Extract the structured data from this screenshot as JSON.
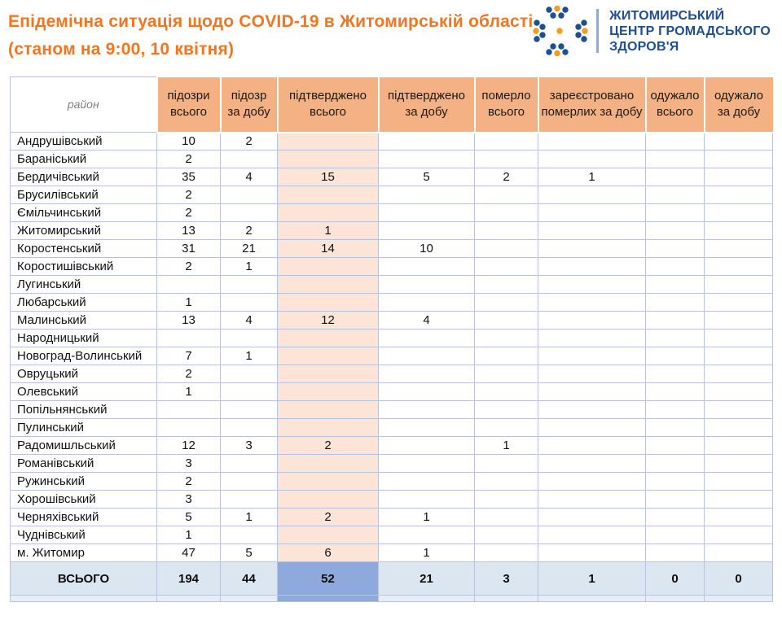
{
  "title": {
    "line1": "Епідемічна ситуація щодо COVID-19 в Житомирській області",
    "line2": "(станом на 9:00, 10 квітня)"
  },
  "logo": {
    "name": "zhytomyr-public-health-center",
    "line1": "ЖИТОМИРСЬКИЙ",
    "line2": "ЦЕНТР ГРОМАДСЬКОГО",
    "line3": "ЗДОРОВ'Я"
  },
  "table": {
    "district_header": "район",
    "columns": [
      {
        "key": "suspected_total",
        "label": "підозри всього"
      },
      {
        "key": "suspected_day",
        "label": "підозр за добу"
      },
      {
        "key": "confirmed_total",
        "label": "підтверджено всього"
      },
      {
        "key": "confirmed_day",
        "label": "підтверджено за добу"
      },
      {
        "key": "died_total",
        "label": "померло всього"
      },
      {
        "key": "died_registered_day",
        "label": "зареєстровано померлих за добу"
      },
      {
        "key": "recovered_total",
        "label": "одужало всього"
      },
      {
        "key": "recovered_day",
        "label": "одужало за добу"
      }
    ],
    "rows": [
      {
        "name": "Андрушівський",
        "values": [
          "10",
          "2",
          "",
          "",
          "",
          "",
          "",
          ""
        ]
      },
      {
        "name": "Бараніський",
        "values": [
          "2",
          "",
          "",
          "",
          "",
          "",
          "",
          ""
        ]
      },
      {
        "name": "Бердичівський",
        "values": [
          "35",
          "4",
          "15",
          "5",
          "2",
          "1",
          "",
          ""
        ]
      },
      {
        "name": "Брусилівський",
        "values": [
          "2",
          "",
          "",
          "",
          "",
          "",
          "",
          ""
        ]
      },
      {
        "name": "Ємільчинський",
        "values": [
          "2",
          "",
          "",
          "",
          "",
          "",
          "",
          ""
        ]
      },
      {
        "name": "Житомирський",
        "values": [
          "13",
          "2",
          "1",
          "",
          "",
          "",
          "",
          ""
        ]
      },
      {
        "name": "Коростенський",
        "values": [
          "31",
          "21",
          "14",
          "10",
          "",
          "",
          "",
          ""
        ]
      },
      {
        "name": "Коростишівський",
        "values": [
          "2",
          "1",
          "",
          "",
          "",
          "",
          "",
          ""
        ]
      },
      {
        "name": "Лугинський",
        "values": [
          "",
          "",
          "",
          "",
          "",
          "",
          "",
          ""
        ]
      },
      {
        "name": "Любарський",
        "values": [
          "1",
          "",
          "",
          "",
          "",
          "",
          "",
          ""
        ]
      },
      {
        "name": "Малинський",
        "values": [
          "13",
          "4",
          "12",
          "4",
          "",
          "",
          "",
          ""
        ]
      },
      {
        "name": "Народницький",
        "values": [
          "",
          "",
          "",
          "",
          "",
          "",
          "",
          ""
        ]
      },
      {
        "name": "Новоград-Волинський",
        "values": [
          "7",
          "1",
          "",
          "",
          "",
          "",
          "",
          ""
        ]
      },
      {
        "name": "Овруцький",
        "values": [
          "2",
          "",
          "",
          "",
          "",
          "",
          "",
          ""
        ]
      },
      {
        "name": "Олевський",
        "values": [
          "1",
          "",
          "",
          "",
          "",
          "",
          "",
          ""
        ]
      },
      {
        "name": "Попільнянський",
        "values": [
          "",
          "",
          "",
          "",
          "",
          "",
          "",
          ""
        ]
      },
      {
        "name": "Пулинський",
        "values": [
          "",
          "",
          "",
          "",
          "",
          "",
          "",
          ""
        ]
      },
      {
        "name": "Радомишльський",
        "values": [
          "12",
          "3",
          "2",
          "",
          "1",
          "",
          "",
          ""
        ]
      },
      {
        "name": "Романівський",
        "values": [
          "3",
          "",
          "",
          "",
          "",
          "",
          "",
          ""
        ]
      },
      {
        "name": "Ружинський",
        "values": [
          "2",
          "",
          "",
          "",
          "",
          "",
          "",
          ""
        ]
      },
      {
        "name": "Хорошівський",
        "values": [
          "3",
          "",
          "",
          "",
          "",
          "",
          "",
          ""
        ]
      },
      {
        "name": "Черняхівський",
        "values": [
          "5",
          "1",
          "2",
          "1",
          "",
          "",
          "",
          ""
        ]
      },
      {
        "name": "Чуднівський",
        "values": [
          "1",
          "",
          "",
          "",
          "",
          "",
          "",
          ""
        ]
      },
      {
        "name": "м. Житомир",
        "values": [
          "47",
          "5",
          "6",
          "1",
          "",
          "",
          "",
          ""
        ]
      }
    ],
    "total": {
      "label": "ВСЬОГО",
      "values": [
        "194",
        "44",
        "52",
        "21",
        "3",
        "1",
        "0",
        "0"
      ]
    }
  },
  "colors": {
    "title-orange": "#F4751F",
    "header-peach": "#F4B183",
    "light-peach": "#FCE4D6",
    "total-blue": "#DCE6F1",
    "total-highlight": "#8EA9DB",
    "grid-blue": "#B7C4E1",
    "logo-blue": "#1E4F91",
    "logo-orange": "#F59C1D",
    "logo-divider": "#93A9C9"
  }
}
